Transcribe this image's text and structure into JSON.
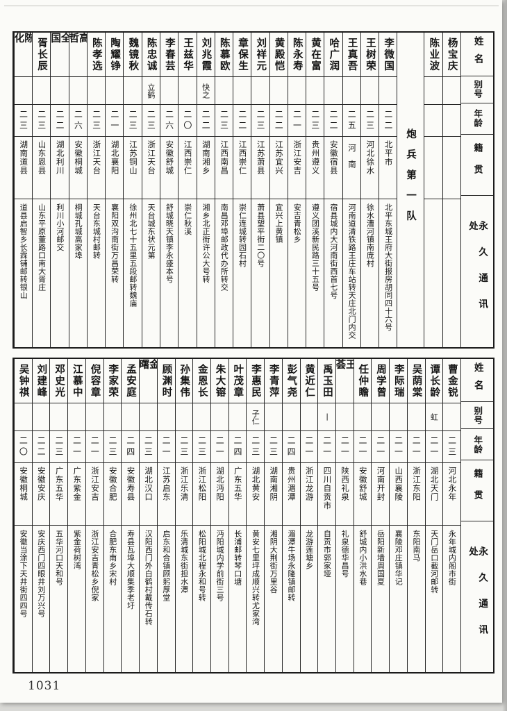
{
  "page_number": "1031",
  "column_headers": {
    "name": "姓名",
    "alias": "别号",
    "age": "年龄",
    "native": "籍贯",
    "address": "永久通讯处"
  },
  "sections": [
    {
      "id": "top",
      "entries": [
        {
          "name": "杨宝庆",
          "alias": "",
          "age": "",
          "native": "",
          "address": ""
        },
        {
          "name": "陈业波",
          "alias": "",
          "age": "",
          "native": "",
          "address": ""
        },
        {
          "divider": "炮兵第一队"
        },
        {
          "name": "李微国",
          "alias": "",
          "age": "二二",
          "native": "北平市",
          "address": "北平东城王府大街报房胡同四十六号"
        },
        {
          "name": "王树荣",
          "alias": "",
          "age": "二三",
          "native": "河北徐水",
          "address": "徐水漕河镇南庞村"
        },
        {
          "name": "王真吾",
          "alias": "",
          "age": "二五",
          "native": "河南",
          "address": "河南道清铁路王庄车站转天庄北门内交"
        },
        {
          "name": "哈广润",
          "alias": "",
          "age": "二二",
          "native": "安徽宿县",
          "address": "宿县城内大河南街西首七号"
        },
        {
          "name": "黄在富",
          "alias": "",
          "age": "二三",
          "native": "贵州遵义",
          "address": "遵义团溪新民路三十五号"
        },
        {
          "name": "陈永寿",
          "alias": "",
          "age": "二一",
          "native": "浙江安吉",
          "address": "安吉青松乡"
        },
        {
          "name": "黄殿恺",
          "alias": "",
          "age": "二二",
          "native": "江苏宜兴",
          "address": "宜兴上黄镇"
        },
        {
          "name": "刘祥元",
          "alias": "",
          "age": "二三",
          "native": "江苏萧县",
          "address": "萧县望平街二〇号"
        },
        {
          "name": "章保生",
          "alias": "",
          "age": "二二",
          "native": "江西崇仁",
          "address": "崇仁连城转园石村"
        },
        {
          "name": "陈慕欧",
          "alias": "",
          "age": "二三",
          "native": "江西南昌",
          "address": "南昌邓埠邮政代办所转交"
        },
        {
          "name": "刘兆霞",
          "alias": "快之",
          "age": "二二",
          "native": "湖南湘乡",
          "address": "湘乡北正街许公大号转"
        },
        {
          "name": "王兹华",
          "alias": "",
          "age": "二〇",
          "native": "江西崇仁",
          "address": "崇仁秋溪"
        },
        {
          "name": "李春芸",
          "alias": "",
          "age": "二六",
          "native": "安徽舒城",
          "address": "舒城晓天镇李永盛本号"
        },
        {
          "name": "陈忠诚",
          "alias": "立鹤",
          "age": "二三",
          "native": "浙江天台",
          "address": "天台城东状元第"
        },
        {
          "name": "魏镜秋",
          "alias": "",
          "age": "二三",
          "native": "江苏铜山",
          "address": "徐州北七十五里五段邮转魏庙"
        },
        {
          "name": "陶耀铮",
          "alias": "",
          "age": "二一",
          "native": "湖北襄阳",
          "address": "襄阳双沟南街万昌荣转"
        },
        {
          "name": "陈孝选",
          "alias": "",
          "age": "二三",
          "native": "浙江天台",
          "address": "天台东城村邮转"
        },
        {
          "name": "高哲",
          "alias": "",
          "age": "二六",
          "native": "安徽桐城",
          "address": "桐城孔城高家埠"
        },
        {
          "name": "全国",
          "alias": "",
          "age": "二二",
          "native": "湖北利川",
          "address": "利川小河邮交"
        },
        {
          "name": "胥长辰",
          "alias": "",
          "age": "二三",
          "native": "山东恩县",
          "address": "山东平原董路口南大胥庄"
        },
        {
          "name": "陈化",
          "alias": "",
          "age": "二三",
          "native": "湖南道县",
          "address": "道县启智乡长霖铺邮转银山"
        }
      ]
    },
    {
      "id": "bottom",
      "entries": [
        {
          "name": "曹金锐",
          "alias": "",
          "age": "二三",
          "native": "河北永年",
          "address": "永年城内阁市街"
        },
        {
          "name": "谭长龄",
          "alias": "虹",
          "age": "二一",
          "native": "湖北天门",
          "address": "天门岳口截河邮转"
        },
        {
          "name": "吴荫棠",
          "alias": "",
          "age": "二一",
          "native": "浙江东阳",
          "address": "东阳南马"
        },
        {
          "name": "李际瑞",
          "alias": "",
          "age": "二一",
          "native": "山西襄陵",
          "address": "襄陵邓庄镇华记"
        },
        {
          "name": "周学曾",
          "alias": "",
          "age": "二一",
          "native": "河南开封",
          "address": "岳阳新墙周国夏"
        },
        {
          "name": "任仲瞻",
          "alias": "",
          "age": "二一",
          "native": "安徽舒城",
          "address": "舒城内小洪水巷"
        },
        {
          "name": "王荟",
          "alias": "",
          "age": "二一",
          "native": "陕西礼泉",
          "address": "礼泉德华昌号"
        },
        {
          "name": "禹玉田",
          "alias": "丨",
          "age": "二一",
          "native": "四川自贡市",
          "address": "自贡市郭家垭"
        },
        {
          "name": "黄近仁",
          "alias": "",
          "age": "二一",
          "native": "浙江龙游",
          "address": "龙游莲塘乡"
        },
        {
          "name": "彭气尧",
          "alias": "",
          "age": "二四",
          "native": "贵州湄潭",
          "address": "湄潭牛场永隆镇邮转"
        },
        {
          "name": "李青萍",
          "alias": "",
          "age": "二三",
          "native": "湖南湘阴",
          "address": "湘阴大荆街万里谷"
        },
        {
          "name": "李惠民",
          "alias": "子仁",
          "age": "二三",
          "native": "湖北黄安",
          "address": "黄安七里坪成顺兴转尤家湾"
        },
        {
          "name": "叶茂章",
          "alias": "",
          "age": "二四",
          "native": "广东五华",
          "address": "长浦邮转琴口塘"
        },
        {
          "name": "朱大镕",
          "alias": "",
          "age": "二一",
          "native": "湖北沔阳",
          "address": "沔阳城内学前街三号"
        },
        {
          "name": "金恩长",
          "alias": "",
          "age": "二三",
          "native": "浙江松阳",
          "address": "松阳城北程永和号转"
        },
        {
          "name": "孙集伟",
          "alias": "",
          "age": "二三",
          "native": "浙江乐清",
          "address": "乐清城东街担水潭"
        },
        {
          "name": "顾渊时",
          "alias": "",
          "age": "二一",
          "native": "江苏启东",
          "address": "启东和合镇顾躬厚堂"
        },
        {
          "name": "金曙",
          "alias": "",
          "age": "二三",
          "native": "湖北汉口",
          "address": "汉阳西门外白鹤村戴传石转"
        },
        {
          "name": "孟安庭",
          "alias": "",
          "age": "二四",
          "native": "安徽寿县",
          "address": "寿县瓦埠大顺集季老圩"
        },
        {
          "name": "李家荣",
          "alias": "",
          "age": "二三",
          "native": "安徽合肥",
          "address": "合肥东南乡宋村"
        },
        {
          "name": "倪容章",
          "alias": "",
          "age": "二一",
          "native": "浙江安吉",
          "address": "浙江安吉青松乡倪家"
        },
        {
          "name": "江慕中",
          "alias": "",
          "age": "二一",
          "native": "广东紫金",
          "address": "紫金荷树湾"
        },
        {
          "name": "邓史光",
          "alias": "",
          "age": "二三",
          "native": "广东五华",
          "address": "五华河口天和号"
        },
        {
          "name": "刘建峰",
          "alias": "",
          "age": "二二",
          "native": "安徽安庆",
          "address": "安庆西门四眼井刘万兴号"
        },
        {
          "name": "吴钟祺",
          "alias": "",
          "age": "二〇",
          "native": "安徽桐城",
          "address": "安徽当涂下天井街四四号"
        }
      ]
    }
  ]
}
